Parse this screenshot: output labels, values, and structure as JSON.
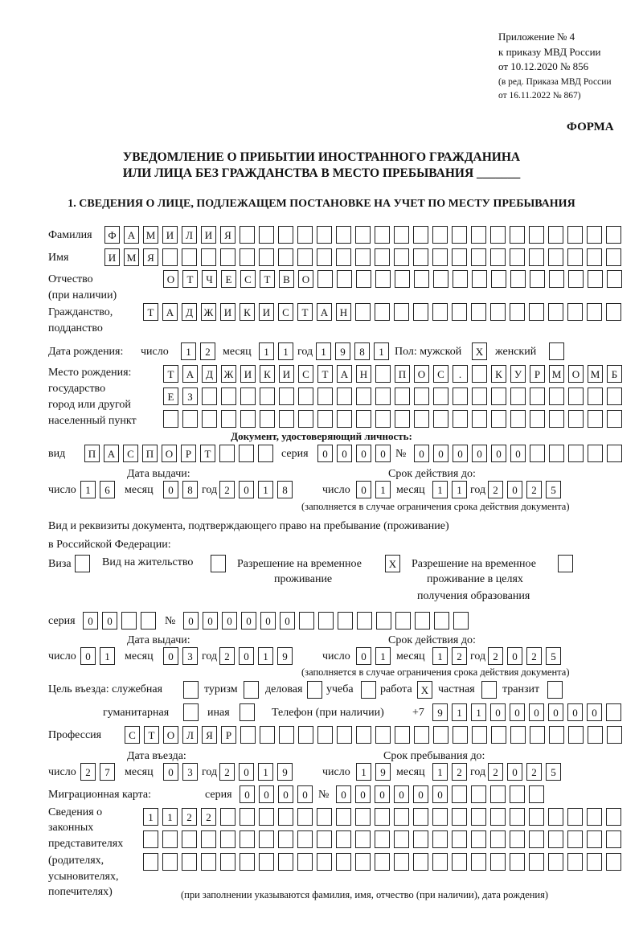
{
  "header": {
    "annex": "Приложение № 4",
    "order": "к приказу МВД России",
    "order_date": "от 10.12.2020 № 856",
    "edition1": "(в ред. Приказа МВД России",
    "edition2": "от 16.11.2022 № 867)",
    "form_label": "ФОРМА"
  },
  "title": {
    "line1": "УВЕДОМЛЕНИЕ О ПРИБЫТИИ ИНОСТРАННОГО ГРАЖДАНИНА",
    "line2": "ИЛИ ЛИЦА БЕЗ ГРАЖДАНСТВА В МЕСТО ПРЕБЫВАНИЯ _______",
    "section1": "1. СВЕДЕНИЯ О ЛИЦЕ, ПОДЛЕЖАЩЕМ ПОСТАНОВКЕ НА УЧЕТ ПО МЕСТУ ПРЕБЫВАНИЯ"
  },
  "labels": {
    "surname": "Фамилия",
    "name": "Имя",
    "patronymic1": "Отчество",
    "patronymic2": "(при наличии)",
    "citizenship1": "Гражданство,",
    "citizenship2": "подданство",
    "birth_date": "Дата рождения:",
    "day": "число",
    "month": "месяц",
    "year": "год",
    "sex": "Пол: мужской",
    "female": "женский",
    "birthplace1": "Место рождения:",
    "birthplace2": "государство",
    "birthplace3": "город или другой",
    "birthplace4": "населенный пункт",
    "id_doc": "Документ, удостоверяющий личность:",
    "kind": "вид",
    "series": "серия",
    "number": "№",
    "issue_date": "Дата выдачи:",
    "valid_until": "Срок действия до:",
    "validity_note": "(заполняется в случае ограничения срока действия документа)",
    "right_doc1": "Вид и реквизиты документа, подтверждающего право на пребывание (проживание)",
    "right_doc2": "в Российской Федерации:",
    "visa": "Виза",
    "residence": "Вид на жительство",
    "trp1": "Разрешение на временное",
    "trp2": "проживание",
    "trp_edu1": "Разрешение на временное",
    "trp_edu2": "проживание в целях",
    "trp_edu3": "получения образования",
    "purpose": "Цель въезда: служебная",
    "tourism": "туризм",
    "business": "деловая",
    "study": "учеба",
    "work": "работа",
    "private": "частная",
    "transit": "транзит",
    "humanitarian": "гуманитарная",
    "other": "иная",
    "phone": "Телефон (при наличии)",
    "phone_prefix": "+7",
    "profession": "Профессия",
    "entry_date": "Дата въезда:",
    "stay_until": "Срок пребывания до:",
    "migration_card": "Миграционная карта:",
    "reps1": "Сведения о",
    "reps2": "законных",
    "reps3": "представителях",
    "reps4": "(родителях,",
    "reps5": "усыновителях,",
    "reps6": "попечителях)",
    "reps_note": "(при заполнении указываются фамилия, имя, отчество (при наличии), дата рождения)"
  },
  "person": {
    "surname": "ФАМИЛИЯ",
    "name": "ИМЯ",
    "patronymic": "ОТЧЕСТВО",
    "citizenship": "ТАДЖИКИСТАН",
    "birth_day": "12",
    "birth_month": "11",
    "birth_year": "1981",
    "male": "X",
    "female": "",
    "birthplace_row1": "ТАДЖИКИСТАН ПОС. КУРМОМБ",
    "birthplace_row2": "ЕЗ",
    "birthplace_row3": ""
  },
  "id_document": {
    "kind": "ПАСПОРТ",
    "series": "0000",
    "number": "000000",
    "issue_day": "16",
    "issue_month": "08",
    "issue_year": "2018",
    "valid_day": "01",
    "valid_month": "11",
    "valid_year": "2025"
  },
  "right_document": {
    "visa": "",
    "residence": "",
    "trp": "X",
    "trp_edu": "",
    "series": "00",
    "number": "000000",
    "issue_day": "01",
    "issue_month": "03",
    "issue_year": "2019",
    "valid_day": "01",
    "valid_month": "12",
    "valid_year": "2025"
  },
  "purpose": {
    "official": "",
    "tourism": "",
    "business": "",
    "study": "",
    "work": "X",
    "private": "",
    "transit": "",
    "humanitarian": "",
    "other": ""
  },
  "phone": "911000000",
  "profession": "СТОЛЯР",
  "entry": {
    "day": "27",
    "month": "03",
    "year": "2019",
    "stay_day": "19",
    "stay_month": "12",
    "stay_year": "2025"
  },
  "migration_card": {
    "series": "0000",
    "number": "000000"
  },
  "representatives": {
    "row1": "1122",
    "row2": "",
    "row3": ""
  }
}
